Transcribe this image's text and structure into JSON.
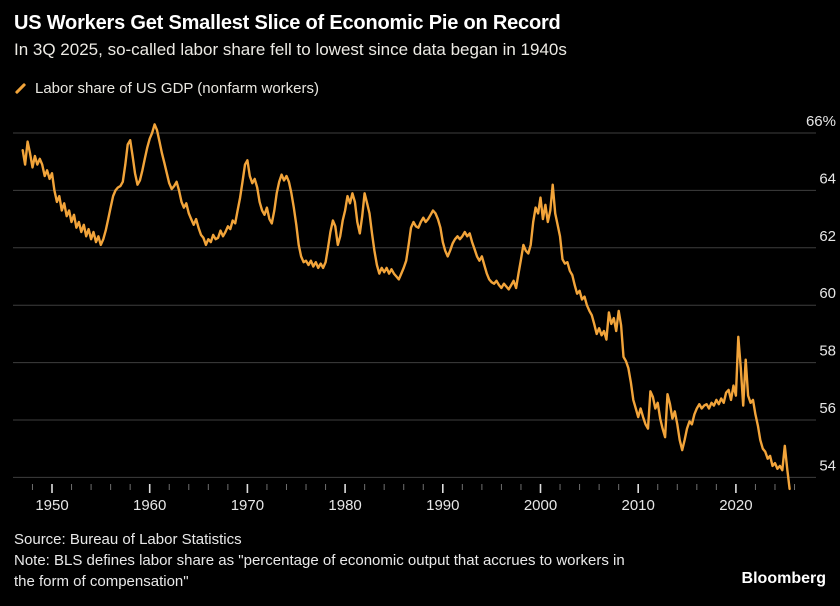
{
  "header": {
    "title": "US Workers Get Smallest Slice of Economic Pie on Record",
    "subtitle": "In 3Q 2025, so-called labor share fell to lowest since data began in 1940s"
  },
  "legend": {
    "label": "Labor share of US GDP (nonfarm workers)"
  },
  "footer": {
    "source": "Source: Bureau of Labor Statistics",
    "note_line1": "Note: BLS defines labor share as \"percentage of economic output that accrues to workers in",
    "note_line2": "the form of compensation\"",
    "brand": "Bloomberg"
  },
  "colors": {
    "background": "#000000",
    "line": "#f2a43a",
    "grid": "#3e3e3e",
    "tick_major": "#dedede",
    "tick_minor": "#6f6f6f",
    "axis_text": "#e6e6e6"
  },
  "chart_data": {
    "type": "line",
    "title": "US Workers Get Smallest Slice of Economic Pie on Record",
    "series_name": "Labor share of US GDP (nonfarm workers)",
    "unit": "%",
    "x_start_year": 1947.0,
    "x_step_years": 0.25,
    "x_end_period": "3Q 2025",
    "ylim": [
      53.2,
      66.6
    ],
    "grid": "horizontal-only",
    "legend_position": "top-left",
    "y_axis_side": "right",
    "y_ticks": [
      66,
      64,
      62,
      60,
      58,
      56,
      54
    ],
    "y_tick_labels": [
      "66%",
      "64",
      "62",
      "60",
      "58",
      "56",
      "54"
    ],
    "x_tick_years": [
      1950,
      1960,
      1970,
      1980,
      1990,
      2000,
      2010,
      2020
    ],
    "x_tick_labels": [
      "1950",
      "1960",
      "1970",
      "1980",
      "1990",
      "2000",
      "2010",
      "2020"
    ],
    "minor_tick_step_years": 2,
    "minor_tick_range": [
      1946,
      2026
    ],
    "values": [
      65.4,
      64.9,
      65.7,
      65.3,
      64.8,
      65.2,
      64.9,
      65.1,
      64.9,
      64.5,
      64.7,
      64.4,
      64.6,
      64.0,
      63.6,
      63.8,
      63.3,
      63.55,
      63.1,
      63.3,
      62.9,
      63.15,
      62.7,
      62.9,
      62.55,
      62.8,
      62.4,
      62.65,
      62.3,
      62.55,
      62.2,
      62.4,
      62.1,
      62.3,
      62.6,
      63.0,
      63.4,
      63.8,
      64.0,
      64.1,
      64.15,
      64.3,
      64.9,
      65.6,
      65.75,
      65.2,
      64.6,
      64.2,
      64.35,
      64.7,
      65.1,
      65.5,
      65.8,
      66.0,
      66.3,
      66.1,
      65.7,
      65.3,
      64.95,
      64.6,
      64.25,
      64.05,
      64.15,
      64.3,
      64.0,
      63.6,
      63.4,
      63.55,
      63.2,
      63.0,
      62.8,
      63.0,
      62.7,
      62.45,
      62.35,
      62.1,
      62.3,
      62.2,
      62.45,
      62.3,
      62.35,
      62.6,
      62.4,
      62.55,
      62.75,
      62.65,
      62.95,
      62.85,
      63.3,
      63.75,
      64.3,
      64.9,
      65.05,
      64.5,
      64.25,
      64.4,
      64.1,
      63.6,
      63.3,
      63.15,
      63.4,
      63.0,
      62.85,
      63.3,
      63.9,
      64.3,
      64.55,
      64.35,
      64.5,
      64.3,
      63.9,
      63.4,
      62.8,
      62.1,
      61.7,
      61.5,
      61.55,
      61.4,
      61.55,
      61.35,
      61.5,
      61.3,
      61.45,
      61.3,
      61.5,
      62.0,
      62.55,
      62.95,
      62.75,
      62.1,
      62.4,
      62.95,
      63.3,
      63.8,
      63.55,
      63.9,
      63.6,
      62.9,
      62.5,
      63.1,
      63.9,
      63.55,
      63.2,
      62.5,
      61.9,
      61.4,
      61.1,
      61.3,
      61.15,
      61.3,
      61.1,
      61.25,
      61.1,
      61.0,
      60.9,
      61.1,
      61.3,
      61.55,
      62.1,
      62.7,
      62.9,
      62.75,
      62.7,
      62.9,
      63.05,
      62.9,
      63.0,
      63.15,
      63.3,
      63.2,
      63.0,
      62.7,
      62.2,
      61.9,
      61.7,
      61.9,
      62.15,
      62.3,
      62.4,
      62.3,
      62.4,
      62.55,
      62.4,
      62.5,
      62.2,
      61.95,
      61.7,
      61.55,
      61.7,
      61.4,
      61.1,
      60.9,
      60.8,
      60.75,
      60.85,
      60.7,
      60.6,
      60.75,
      60.65,
      60.55,
      60.7,
      60.85,
      60.6,
      61.1,
      61.6,
      62.1,
      61.9,
      61.8,
      62.1,
      62.9,
      63.4,
      63.2,
      63.75,
      63.0,
      63.5,
      62.9,
      63.3,
      64.2,
      63.2,
      62.8,
      62.4,
      61.6,
      61.45,
      61.5,
      61.2,
      61.05,
      60.7,
      60.4,
      60.5,
      60.2,
      60.3,
      60.0,
      59.8,
      59.65,
      59.35,
      59.0,
      59.2,
      58.95,
      59.1,
      58.8,
      59.75,
      59.35,
      59.55,
      59.1,
      59.8,
      59.3,
      58.2,
      58.05,
      57.8,
      57.3,
      56.7,
      56.4,
      56.1,
      56.4,
      56.1,
      55.85,
      55.7,
      57.0,
      56.8,
      56.4,
      56.6,
      56.05,
      55.7,
      55.4,
      56.9,
      56.55,
      56.05,
      56.3,
      55.85,
      55.3,
      54.95,
      55.3,
      55.7,
      55.95,
      55.85,
      56.2,
      56.4,
      56.55,
      56.4,
      56.5,
      56.55,
      56.4,
      56.6,
      56.5,
      56.7,
      56.55,
      56.75,
      56.6,
      56.95,
      57.05,
      56.7,
      57.2,
      56.85,
      58.9,
      57.8,
      56.5,
      58.1,
      56.85,
      56.6,
      56.7,
      56.2,
      55.8,
      55.3,
      55.0,
      54.9,
      54.65,
      54.75,
      54.4,
      54.5,
      54.3,
      54.4,
      54.25,
      55.1,
      54.3,
      53.6
    ]
  }
}
